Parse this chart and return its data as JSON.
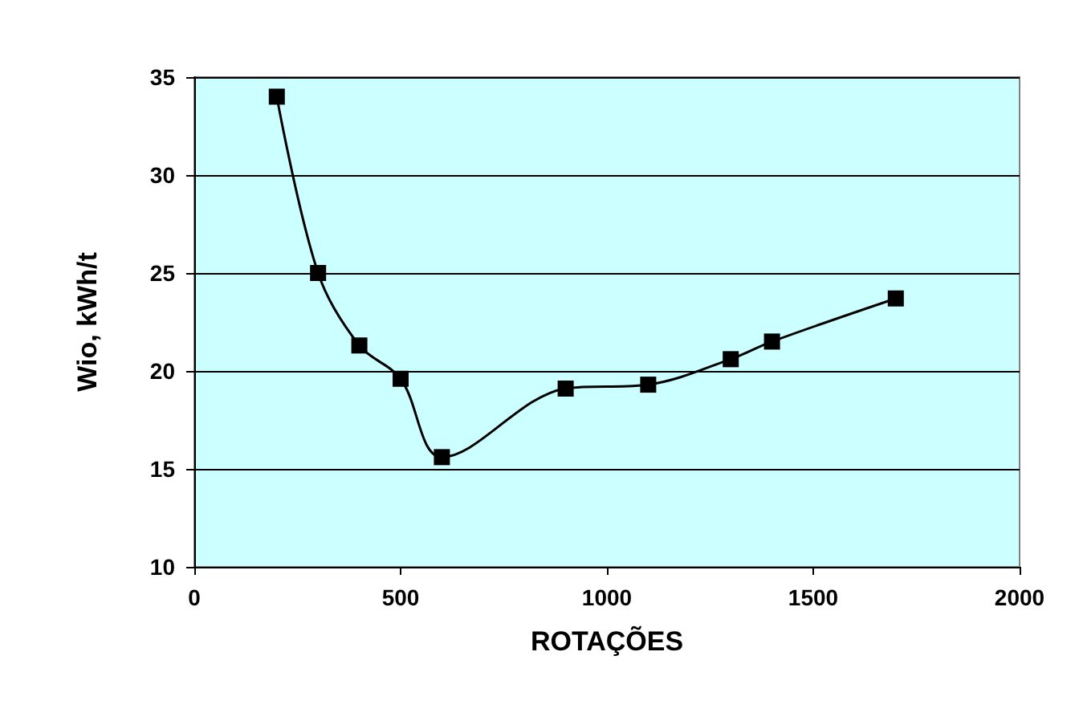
{
  "chart_data": {
    "type": "line",
    "xlabel": "ROTAÇÕES",
    "ylabel": "Wio, kWh/t",
    "x": [
      200,
      300,
      400,
      500,
      600,
      900,
      1100,
      1300,
      1400,
      1700
    ],
    "series": [
      {
        "color": "#000000",
        "values": [
          34,
          25,
          21.3,
          19.6,
          15.6,
          19.1,
          19.3,
          20.6,
          21.5,
          23.7
        ]
      }
    ],
    "xlim": [
      0,
      2000
    ],
    "xticks": [
      0,
      500,
      1000,
      1500,
      2000
    ],
    "ylim": [
      10,
      35
    ],
    "yticks": [
      10,
      15,
      20,
      25,
      30,
      35
    ],
    "grid": "y",
    "marker": "square",
    "line_style": "solid"
  }
}
